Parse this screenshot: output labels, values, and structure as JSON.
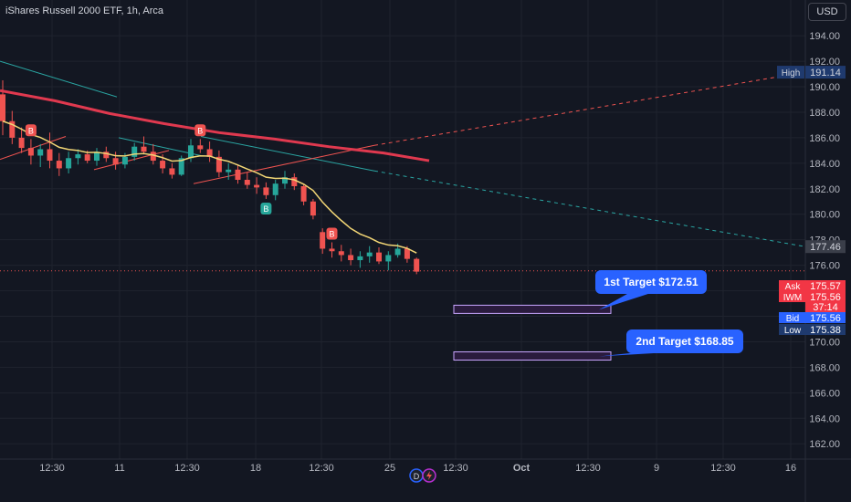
{
  "header": {
    "title": "iShares Russell 2000 ETF, 1h, Arca",
    "currency_button": "USD"
  },
  "colors": {
    "background": "#131722",
    "bull": "#26a69a",
    "bear": "#ef5350",
    "ema_fast": "#f2d675",
    "ema_slow": "#e0394f",
    "trend_teal": "#2aa5a2",
    "grid": "#1f232e",
    "target_box": "#c9a6ff",
    "callout": "#2962ff"
  },
  "chart_data": {
    "type": "candlestick",
    "symbol": "IWM",
    "interval": "1h",
    "exchange": "Arca",
    "y_axis": {
      "ticks": [
        162,
        164,
        166,
        168,
        170,
        172,
        174,
        176,
        178,
        180,
        182,
        184,
        186,
        188,
        190,
        192,
        194
      ],
      "tick_labels": [
        "162.00",
        "164.00",
        "166.00",
        "168.00",
        "170.00",
        "172.00",
        "174.00",
        "176.00",
        "178.00",
        "180.00",
        "182.00",
        "184.00",
        "186.00",
        "188.00",
        "190.00",
        "192.00",
        "194.00"
      ],
      "range": [
        160.8,
        196.8
      ]
    },
    "x_axis": {
      "labels": [
        "12:30",
        "11",
        "12:30",
        "18",
        "12:30",
        "25",
        "12:30",
        "Oct",
        "12:30",
        "9",
        "12:30",
        "16"
      ],
      "range": [
        0,
        90
      ]
    },
    "ohlc": [
      [
        189.4,
        190.5,
        186.2,
        187.3
      ],
      [
        187.3,
        188.1,
        185.5,
        186.0
      ],
      [
        186.0,
        186.8,
        184.8,
        185.2
      ],
      [
        185.2,
        185.9,
        183.9,
        184.6
      ],
      [
        184.6,
        185.5,
        183.7,
        185.1
      ],
      [
        185.1,
        186.4,
        183.6,
        184.2
      ],
      [
        184.2,
        184.8,
        183.0,
        183.6
      ],
      [
        183.6,
        184.9,
        183.2,
        184.4
      ],
      [
        184.4,
        185.1,
        183.9,
        184.7
      ],
      [
        184.7,
        185.0,
        184.0,
        184.2
      ],
      [
        184.2,
        185.2,
        183.8,
        184.9
      ],
      [
        184.9,
        185.3,
        184.1,
        184.4
      ],
      [
        184.4,
        184.9,
        183.5,
        183.9
      ],
      [
        183.9,
        184.8,
        183.6,
        184.5
      ],
      [
        184.5,
        185.6,
        184.2,
        185.3
      ],
      [
        185.3,
        186.1,
        184.7,
        184.9
      ],
      [
        184.9,
        185.5,
        183.9,
        184.2
      ],
      [
        184.2,
        184.7,
        183.2,
        183.6
      ],
      [
        183.6,
        184.0,
        182.8,
        183.1
      ],
      [
        183.1,
        184.6,
        183.0,
        184.4
      ],
      [
        184.4,
        185.9,
        184.1,
        185.4
      ],
      [
        185.4,
        185.9,
        184.8,
        185.1
      ],
      [
        185.1,
        185.7,
        184.1,
        184.5
      ],
      [
        184.5,
        185.0,
        182.9,
        183.3
      ],
      [
        183.3,
        184.0,
        182.7,
        183.5
      ],
      [
        183.5,
        183.9,
        182.4,
        182.7
      ],
      [
        182.7,
        183.3,
        182.0,
        182.3
      ],
      [
        182.3,
        182.9,
        181.6,
        182.1
      ],
      [
        182.1,
        182.5,
        181.2,
        181.5
      ],
      [
        181.5,
        182.7,
        181.1,
        182.4
      ],
      [
        182.4,
        183.4,
        182.0,
        182.9
      ],
      [
        182.9,
        183.2,
        181.9,
        182.2
      ],
      [
        182.2,
        182.4,
        180.7,
        181.0
      ],
      [
        181.0,
        181.2,
        179.6,
        179.9
      ],
      [
        178.6,
        178.9,
        176.9,
        177.3
      ],
      [
        177.3,
        177.8,
        176.6,
        177.1
      ],
      [
        177.1,
        177.6,
        176.3,
        176.8
      ],
      [
        176.8,
        177.3,
        176.0,
        176.4
      ],
      [
        176.4,
        177.1,
        175.8,
        176.7
      ],
      [
        176.7,
        177.5,
        176.2,
        177.0
      ],
      [
        177.0,
        177.4,
        176.1,
        176.3
      ],
      [
        176.3,
        177.1,
        175.6,
        176.8
      ],
      [
        176.8,
        177.7,
        176.6,
        177.3
      ],
      [
        177.3,
        177.5,
        176.2,
        176.5
      ],
      [
        176.5,
        176.6,
        175.3,
        175.5
      ]
    ],
    "indicators": [
      {
        "name": "EMA fast",
        "color": "#f2d675"
      },
      {
        "name": "EMA slow",
        "color": "#e0394f"
      }
    ],
    "signals": [
      {
        "label": "B",
        "type": "sell",
        "index": 3
      },
      {
        "label": "B",
        "type": "sell",
        "index": 21
      },
      {
        "label": "B",
        "type": "buy",
        "index": 28
      },
      {
        "label": "B",
        "type": "sell",
        "index": 35
      }
    ],
    "price_labels": {
      "high": {
        "label": "High",
        "value": "191.14"
      },
      "trend": {
        "value": "177.46"
      },
      "ask": {
        "label": "Ask",
        "value": "175.57"
      },
      "last": {
        "label": "IWM",
        "value": "175.56",
        "countdown": "37:14"
      },
      "bid": {
        "label": "Bid",
        "value": "175.56"
      },
      "low": {
        "label": "Low",
        "value": "175.38"
      }
    },
    "targets": [
      {
        "label": "1st Target $172.51",
        "value": 172.51
      },
      {
        "label": "2nd Target $168.85",
        "value": 168.85
      }
    ]
  }
}
